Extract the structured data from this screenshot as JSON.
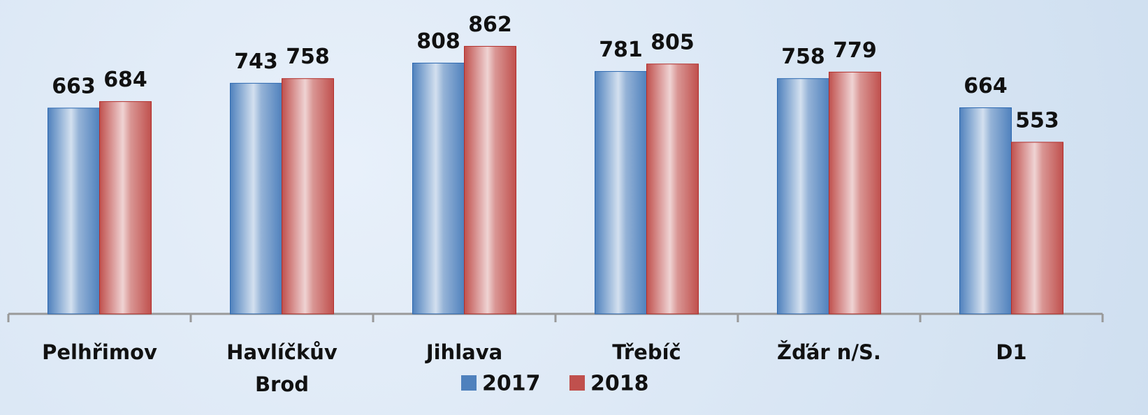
{
  "chart_data": {
    "type": "bar",
    "categories": [
      "Pelhřimov",
      "Havlíčkův Brod",
      "Jihlava",
      "Třebíč",
      "Žďár n/S.",
      "D1"
    ],
    "series": [
      {
        "name": "2017",
        "color": "#4f81bd",
        "values": [
          663,
          743,
          808,
          781,
          758,
          664
        ]
      },
      {
        "name": "2018",
        "color": "#c0504d",
        "values": [
          684,
          758,
          862,
          805,
          779,
          553
        ]
      }
    ],
    "ylim": [
      0,
      1000
    ]
  }
}
